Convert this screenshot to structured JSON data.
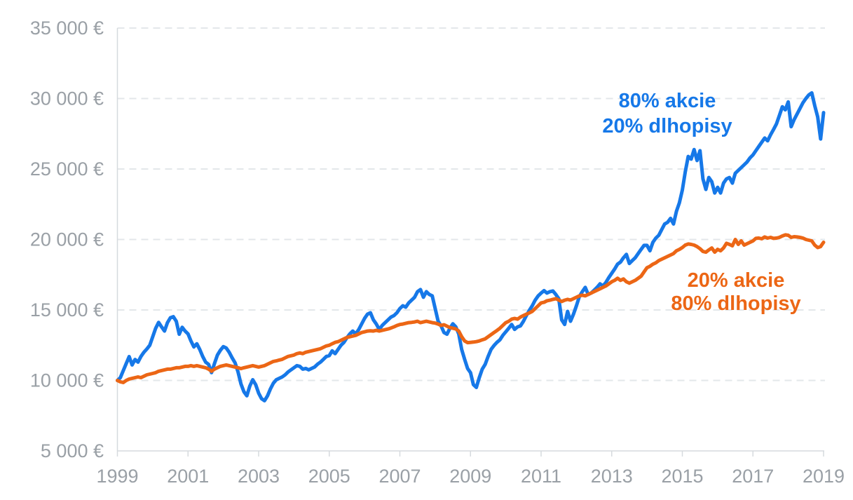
{
  "chart_data": {
    "type": "line",
    "title": "",
    "xlabel": "",
    "ylabel": "",
    "currency_symbol": "€",
    "xlim": [
      1999,
      2019
    ],
    "ylim": [
      5000,
      35000
    ],
    "grid": "horizontal-dashed",
    "legend_position": "inline-annotations",
    "x_start_year": 1999,
    "x_step": "monthly",
    "x_tick_labels": [
      "1999",
      "2001",
      "2003",
      "2005",
      "2007",
      "2009",
      "2011",
      "2013",
      "2015",
      "2017",
      "2019"
    ],
    "x_tick_years": [
      1999,
      2001,
      2003,
      2005,
      2007,
      2009,
      2011,
      2013,
      2015,
      2017,
      2019
    ],
    "y_tick_labels": [
      "5 000 €",
      "10 000 €",
      "15 000 €",
      "20 000 €",
      "25 000 €",
      "30 000 €",
      "35 000 €"
    ],
    "y_tick_values": [
      5000,
      10000,
      15000,
      20000,
      25000,
      30000,
      35000
    ],
    "series": [
      {
        "name": "80% akcie / 20% dlhopisy",
        "legend_lines": [
          "80% akcie",
          "20% dlhopisy"
        ],
        "color": "#1678e8",
        "start_value": 10000,
        "values": [
          10000,
          10200,
          10700,
          11200,
          11690,
          11100,
          11490,
          11300,
          11700,
          12000,
          12230,
          12500,
          13100,
          13700,
          14120,
          13800,
          13500,
          14100,
          14450,
          14520,
          14200,
          13280,
          13770,
          13500,
          13300,
          12800,
          12380,
          12600,
          12200,
          11700,
          11300,
          11140,
          10550,
          11200,
          11800,
          12140,
          12400,
          12300,
          12000,
          11600,
          11250,
          10600,
          9750,
          9200,
          8910,
          9600,
          10050,
          9700,
          9100,
          8700,
          8560,
          8900,
          9400,
          9800,
          10050,
          10150,
          10250,
          10400,
          10600,
          10750,
          10900,
          11050,
          11000,
          10800,
          10850,
          10750,
          10850,
          10950,
          11150,
          11300,
          11500,
          11700,
          11760,
          12100,
          11900,
          12200,
          12500,
          12700,
          13030,
          13300,
          13500,
          13300,
          13600,
          14000,
          14400,
          14700,
          14800,
          14300,
          14000,
          13620,
          13900,
          14100,
          14300,
          14500,
          14600,
          14800,
          15100,
          15300,
          15200,
          15500,
          15700,
          15900,
          16300,
          16450,
          15900,
          16300,
          16100,
          16000,
          15100,
          14200,
          13870,
          13400,
          13280,
          13700,
          14020,
          13800,
          13300,
          12200,
          11500,
          10850,
          10550,
          9700,
          9500,
          10200,
          10800,
          11140,
          11700,
          12200,
          12480,
          12700,
          12880,
          13200,
          13450,
          13700,
          13970,
          13620,
          13800,
          13870,
          14200,
          14600,
          14970,
          15300,
          15700,
          16000,
          16200,
          16370,
          16200,
          16300,
          16350,
          16100,
          15800,
          14300,
          13970,
          14900,
          14200,
          14700,
          15300,
          15950,
          16300,
          16600,
          16100,
          16200,
          16400,
          16600,
          16850,
          16700,
          16950,
          17300,
          17600,
          17900,
          18250,
          18400,
          18700,
          18940,
          18300,
          18500,
          18700,
          19000,
          19300,
          19580,
          19580,
          19200,
          19800,
          20100,
          20300,
          20700,
          21100,
          21220,
          21500,
          21100,
          22000,
          22600,
          23500,
          24800,
          25890,
          25700,
          26380,
          25600,
          26300,
          24300,
          23550,
          24400,
          24100,
          23300,
          23700,
          23300,
          24000,
          24300,
          24400,
          24000,
          24700,
          24900,
          25100,
          25300,
          25500,
          25790,
          26000,
          26300,
          26600,
          26900,
          27200,
          27000,
          27430,
          27800,
          28200,
          28800,
          29420,
          29200,
          29760,
          28000,
          28500,
          28900,
          29300,
          29700,
          30000,
          30260,
          30400,
          29500,
          28700,
          27130,
          29000
        ]
      },
      {
        "name": "20% akcie / 80% dlhopisy",
        "legend_lines": [
          "20% akcie",
          "80% dlhopisy"
        ],
        "color": "#ec6615",
        "start_value": 10000,
        "values": [
          10000,
          9900,
          9850,
          10000,
          10100,
          10150,
          10200,
          10250,
          10200,
          10300,
          10400,
          10450,
          10500,
          10550,
          10650,
          10700,
          10750,
          10800,
          10800,
          10850,
          10900,
          10900,
          10950,
          11000,
          11000,
          11050,
          11000,
          11050,
          11000,
          10950,
          10900,
          10800,
          10650,
          10800,
          10900,
          11000,
          11050,
          11100,
          11050,
          11000,
          10950,
          10900,
          10840,
          10900,
          10950,
          11000,
          11050,
          11000,
          10950,
          11000,
          11050,
          11150,
          11250,
          11350,
          11390,
          11450,
          11500,
          11600,
          11700,
          11750,
          11800,
          11900,
          11950,
          11900,
          12000,
          12050,
          12100,
          12150,
          12200,
          12250,
          12350,
          12450,
          12500,
          12600,
          12700,
          12750,
          12850,
          12950,
          13050,
          13100,
          13150,
          13200,
          13300,
          13400,
          13450,
          13500,
          13520,
          13500,
          13550,
          13500,
          13550,
          13600,
          13650,
          13720,
          13800,
          13900,
          13970,
          14000,
          14050,
          14100,
          14120,
          14150,
          14200,
          14100,
          14150,
          14200,
          14150,
          14100,
          14070,
          14000,
          13900,
          13950,
          13850,
          13750,
          13700,
          13650,
          13500,
          13100,
          12800,
          12680,
          12700,
          12720,
          12750,
          12800,
          12880,
          12950,
          13100,
          13250,
          13400,
          13540,
          13700,
          13900,
          14100,
          14200,
          14350,
          14400,
          14350,
          14500,
          14600,
          14700,
          14790,
          14900,
          15100,
          15300,
          15500,
          15540,
          15650,
          15690,
          15750,
          15800,
          15700,
          15600,
          15690,
          15750,
          15700,
          15800,
          15900,
          16000,
          16050,
          16000,
          16100,
          16200,
          16300,
          16400,
          16500,
          16600,
          16700,
          16850,
          17000,
          17100,
          17250,
          17100,
          17200,
          17000,
          16900,
          17000,
          17100,
          17250,
          17400,
          17700,
          18000,
          18100,
          18250,
          18350,
          18500,
          18600,
          18700,
          18800,
          18900,
          19000,
          19200,
          19300,
          19430,
          19600,
          19680,
          19650,
          19600,
          19500,
          19350,
          19150,
          19100,
          19260,
          19400,
          19100,
          19300,
          19200,
          19400,
          19730,
          19650,
          19550,
          20000,
          19650,
          19900,
          19600,
          19700,
          19800,
          19900,
          20080,
          20100,
          20050,
          20180,
          20100,
          20150,
          20080,
          20100,
          20150,
          20250,
          20330,
          20300,
          20150,
          20200,
          20180,
          20150,
          20100,
          20000,
          19950,
          19900,
          19600,
          19430,
          19500,
          19800
        ]
      }
    ],
    "style_colors": {
      "axis_text": "#9aa0a6",
      "gridline": "#e3e7ea",
      "axis_line": "#d6dade",
      "background": "#ffffff"
    }
  }
}
